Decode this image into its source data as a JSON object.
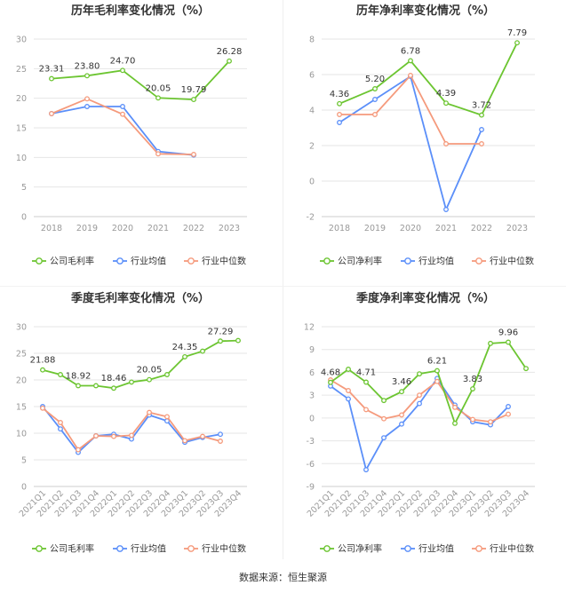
{
  "footer": {
    "source": "数据来源：恒生聚源"
  },
  "colors": {
    "company": "#6cc531",
    "avg": "#5b8ff9",
    "median": "#f59a7c",
    "grid": "#e6e6e6",
    "axis": "#999999",
    "text": "#333333"
  },
  "chart_data": [
    {
      "type": "line",
      "title": "历年毛利率变化情况（%）",
      "categories": [
        "2018",
        "2019",
        "2020",
        "2021",
        "2022",
        "2023"
      ],
      "ylim": [
        0,
        30
      ],
      "yticks": [
        0,
        5,
        10,
        15,
        20,
        25,
        30
      ],
      "ytick_labels": [
        "0",
        "5",
        "10",
        "15",
        "20",
        "25",
        "30"
      ],
      "series": [
        {
          "name": "公司毛利率",
          "key": "company",
          "values": [
            23.31,
            23.8,
            24.7,
            20.05,
            19.79,
            26.28
          ],
          "labels": [
            "23.31",
            "23.80",
            "24.70",
            "20.05",
            "19.79",
            "26.28"
          ]
        },
        {
          "name": "行业均值",
          "key": "avg",
          "values": [
            17.4,
            18.6,
            18.6,
            11.0,
            10.4,
            null
          ]
        },
        {
          "name": "行业中位数",
          "key": "median",
          "values": [
            17.4,
            19.9,
            17.3,
            10.6,
            10.5,
            null
          ]
        }
      ]
    },
    {
      "type": "line",
      "title": "历年净利率变化情况（%）",
      "categories": [
        "2018",
        "2019",
        "2020",
        "2021",
        "2022",
        "2023"
      ],
      "ylim": [
        -2,
        8
      ],
      "yticks": [
        -2,
        0,
        2,
        4,
        6,
        8
      ],
      "ytick_labels": [
        "-2",
        "0",
        "2",
        "4",
        "6",
        "8"
      ],
      "series": [
        {
          "name": "公司净利率",
          "key": "company",
          "values": [
            4.36,
            5.2,
            6.78,
            4.39,
            3.72,
            7.79
          ],
          "labels": [
            "4.36",
            "5.20",
            "6.78",
            "4.39",
            "3.72",
            "7.79"
          ]
        },
        {
          "name": "行业均值",
          "key": "avg",
          "values": [
            3.3,
            4.6,
            5.9,
            -1.6,
            2.9,
            null
          ]
        },
        {
          "name": "行业中位数",
          "key": "median",
          "values": [
            3.75,
            3.75,
            5.95,
            2.1,
            2.1,
            null
          ]
        }
      ]
    },
    {
      "type": "line",
      "title": "季度毛利率变化情况（%）",
      "categories": [
        "2021Q1",
        "2021Q2",
        "2021Q3",
        "2021Q4",
        "2022Q1",
        "2022Q2",
        "2022Q3",
        "2022Q4",
        "2023Q1",
        "2023Q2",
        "2023Q3",
        "2023Q4"
      ],
      "ylim": [
        0,
        30
      ],
      "yticks": [
        0,
        5,
        10,
        15,
        20,
        25,
        30
      ],
      "ytick_labels": [
        "0",
        "5",
        "10",
        "15",
        "20",
        "25",
        "30"
      ],
      "series": [
        {
          "name": "公司毛利率",
          "key": "company",
          "values": [
            21.88,
            21.0,
            18.92,
            18.92,
            18.46,
            19.6,
            20.05,
            21.0,
            24.35,
            25.4,
            27.29,
            27.4
          ],
          "labels": [
            "21.88",
            null,
            "18.92",
            null,
            "18.46",
            null,
            "20.05",
            null,
            "24.35",
            null,
            "27.29",
            null
          ]
        },
        {
          "name": "行业均值",
          "key": "avg",
          "values": [
            15.0,
            10.8,
            6.4,
            9.5,
            9.8,
            8.9,
            13.4,
            12.3,
            8.3,
            9.2,
            9.8,
            null
          ]
        },
        {
          "name": "行业中位数",
          "key": "median",
          "values": [
            14.7,
            12.0,
            6.9,
            9.5,
            9.4,
            9.6,
            13.9,
            13.1,
            8.6,
            9.4,
            8.5,
            null
          ]
        }
      ]
    },
    {
      "type": "line",
      "title": "季度净利率变化情况（%）",
      "categories": [
        "2021Q1",
        "2021Q2",
        "2021Q3",
        "2021Q4",
        "2022Q1",
        "2022Q2",
        "2022Q3",
        "2022Q4",
        "2023Q1",
        "2023Q2",
        "2023Q3",
        "2023Q4"
      ],
      "ylim": [
        -9,
        12
      ],
      "yticks": [
        -9,
        -6,
        -3,
        0,
        3,
        6,
        9,
        12
      ],
      "ytick_labels": [
        "-9",
        "-6",
        "-3",
        "0",
        "3",
        "6",
        "9",
        "12"
      ],
      "series": [
        {
          "name": "公司净利率",
          "key": "company",
          "values": [
            4.68,
            6.4,
            4.71,
            2.3,
            3.46,
            5.8,
            6.21,
            -0.7,
            3.83,
            9.8,
            9.96,
            6.5
          ],
          "labels": [
            "4.68",
            null,
            "4.71",
            null,
            "3.46",
            null,
            "6.21",
            null,
            "3.83",
            null,
            "9.96",
            null
          ]
        },
        {
          "name": "行业均值",
          "key": "avg",
          "values": [
            4.2,
            2.5,
            -6.8,
            -2.6,
            -0.8,
            1.9,
            5.2,
            1.7,
            -0.5,
            -0.9,
            1.5,
            null
          ]
        },
        {
          "name": "行业中位数",
          "key": "median",
          "values": [
            5.0,
            3.6,
            1.1,
            -0.1,
            0.4,
            3.0,
            4.8,
            1.4,
            -0.2,
            -0.5,
            0.5,
            null
          ]
        }
      ]
    }
  ]
}
